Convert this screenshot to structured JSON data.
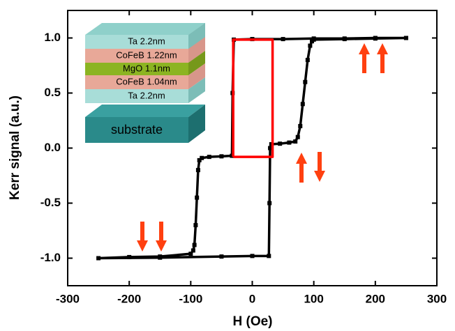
{
  "chart_data": {
    "type": "line",
    "x_label": "H (Oe)",
    "y_label": "Kerr signal (a.u.)",
    "xlim": [
      -300,
      300
    ],
    "ylim": [
      -1.25,
      1.25
    ],
    "xticks": [
      -300,
      -200,
      -100,
      0,
      100,
      200,
      300
    ],
    "yticks": [
      {
        "value": -1,
        "label": "-1.0"
      },
      -0.5,
      {
        "value": 0,
        "label": "0.0"
      },
      0.5,
      {
        "value": 1,
        "label": "1.0"
      }
    ],
    "series": [
      {
        "color": "#000000",
        "markers": true,
        "x": [
          250,
          200,
          150,
          100,
          50,
          0,
          -30,
          -32,
          -33,
          -50,
          -70,
          -82,
          -86,
          -88,
          -90,
          -92,
          -94,
          -96,
          -100,
          -150,
          -200,
          -250,
          -150,
          -50,
          0,
          27,
          28,
          29,
          31,
          45,
          60,
          70,
          74,
          78,
          82,
          86,
          90,
          94,
          97,
          100,
          150,
          200,
          250
        ],
        "values": [
          1.0,
          1.0,
          0.995,
          0.995,
          0.99,
          0.99,
          0.985,
          0.5,
          -0.07,
          -0.075,
          -0.08,
          -0.09,
          -0.11,
          -0.2,
          -0.45,
          -0.7,
          -0.88,
          -0.93,
          -0.96,
          -0.985,
          -0.99,
          -1.0,
          -0.995,
          -0.985,
          -0.98,
          -0.98,
          -0.5,
          0.0,
          0.035,
          0.04,
          0.05,
          0.06,
          0.1,
          0.2,
          0.4,
          0.6,
          0.8,
          0.93,
          0.97,
          0.985,
          0.99,
          0.995,
          1.0
        ]
      },
      {
        "color": "#ff0000",
        "markers": false,
        "x": [
          -31,
          0,
          33,
          33,
          33,
          0,
          -31,
          -31,
          -31
        ],
        "values": [
          -0.08,
          -0.08,
          -0.08,
          0.45,
          0.985,
          0.985,
          0.985,
          0.45,
          -0.08
        ]
      }
    ],
    "inset_layers": [
      "Ta  2.2nm",
      "CoFeB 1.22nm",
      "MgO 1.1nm",
      "CoFeB 1.04nm",
      "Ta  2.2nm"
    ],
    "inset_substrate": "substrate"
  }
}
